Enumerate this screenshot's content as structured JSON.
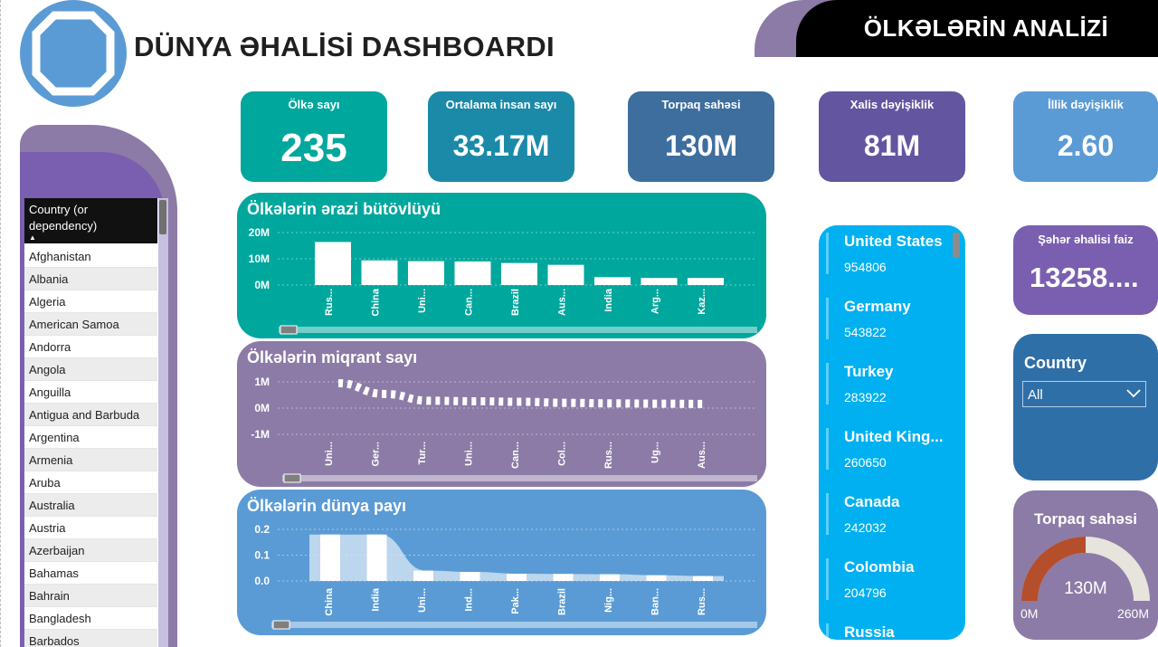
{
  "header": {
    "title": "DÜNYA ƏHALİSİ DASHBOARDI",
    "banner": "ÖLKƏLƏRİN ANALİZİ",
    "logo_icon": "octagon-logo-icon"
  },
  "colors": {
    "teal": "#00a79d",
    "steel_teal": "#1b8aa8",
    "slate_blue": "#3d6e9e",
    "purple": "#6455a0",
    "sky": "#5b9bd5",
    "cyan": "#00b0f0",
    "mauve": "#8c7ba6",
    "violet": "#7a5fb0",
    "gauge_fill": "#b54e2b",
    "gauge_rest": "#e7e3dd"
  },
  "kpis": [
    {
      "label": "Ölkə sayı",
      "value": "235"
    },
    {
      "label": "Ortalama insan sayı",
      "value": "33.17M"
    },
    {
      "label": "Torpaq sahəsi",
      "value": "130M"
    },
    {
      "label": "Xalis dəyişiklik",
      "value": "81M"
    },
    {
      "label": "İllik dəyişiklik",
      "value": "2.60"
    }
  ],
  "slicer": {
    "header": "Country (or dependency)",
    "items": [
      "Afghanistan",
      "Albania",
      "Algeria",
      "American Samoa",
      "Andorra",
      "Angola",
      "Anguilla",
      "Antigua and Barbuda",
      "Argentina",
      "Armenia",
      "Aruba",
      "Australia",
      "Austria",
      "Azerbaijan",
      "Bahamas",
      "Bahrain",
      "Bangladesh",
      "Barbados"
    ]
  },
  "chart_data": [
    {
      "type": "bar",
      "title": "Ölkələrin ərazi bütövlüyü",
      "categories": [
        "Rus...",
        "China",
        "Uni...",
        "Can...",
        "Brazil",
        "Aus...",
        "India",
        "Arg...",
        "Kaz..."
      ],
      "values": [
        16.4,
        9.4,
        9.1,
        9.0,
        8.4,
        7.7,
        3.0,
        2.7,
        2.7
      ],
      "unit": "M",
      "yticks": [
        "20M",
        "10M",
        "0M"
      ],
      "ylim": [
        0,
        20
      ]
    },
    {
      "type": "line",
      "title": "Ölkələrin miqrant sayı",
      "categories": [
        "Uni...",
        "Ger...",
        "Tur...",
        "Uni...",
        "Can...",
        "Col...",
        "Rus...",
        "Ug...",
        "Aus..."
      ],
      "values": [
        0.95,
        0.54,
        0.28,
        0.26,
        0.24,
        0.2,
        0.18,
        0.17,
        0.16
      ],
      "yticks": [
        "1M",
        "0M",
        "-1M"
      ],
      "ylim": [
        -1,
        1
      ]
    },
    {
      "type": "bar",
      "title": "Ölkələrin dünya payı",
      "categories": [
        "China",
        "India",
        "Uni...",
        "Ind...",
        "Pak...",
        "Brazil",
        "Nig...",
        "Ban...",
        "Rus..."
      ],
      "values": [
        0.18,
        0.18,
        0.04,
        0.035,
        0.028,
        0.027,
        0.026,
        0.022,
        0.019
      ],
      "yticks": [
        "0.2",
        "0.1",
        "0.0"
      ],
      "ylim": [
        0,
        0.2
      ]
    }
  ],
  "country_list": [
    {
      "name": "United States",
      "value": "954806"
    },
    {
      "name": "Germany",
      "value": "543822"
    },
    {
      "name": "Turkey",
      "value": "283922"
    },
    {
      "name": "United King...",
      "value": "260650"
    },
    {
      "name": "Canada",
      "value": "242032"
    },
    {
      "name": "Colombia",
      "value": "204796"
    },
    {
      "name": "Russia",
      "value": ""
    }
  ],
  "urban": {
    "label": "Şəhər əhalisi faiz",
    "value": "13258...."
  },
  "country_filter": {
    "title": "Country",
    "selected": "All"
  },
  "gauge": {
    "title": "Torpaq sahəsi",
    "value": "130M",
    "min": "0M",
    "max": "260M",
    "fraction": 0.5
  }
}
